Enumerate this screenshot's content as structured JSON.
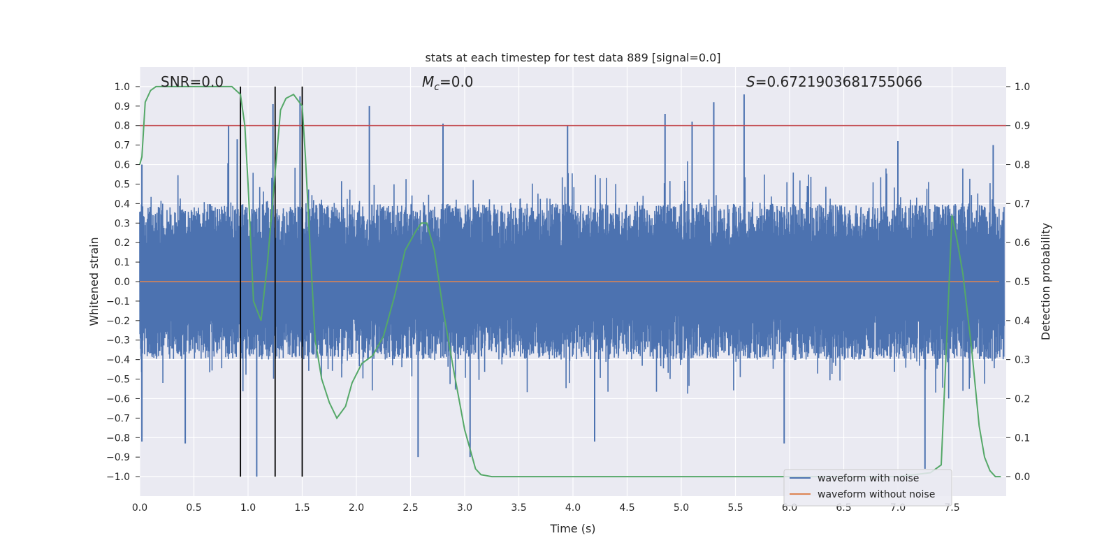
{
  "chart_data": {
    "type": "line",
    "title": "stats at each timestep for test data 889 [signal=0.0]",
    "xlabel": "Time (s)",
    "ylabel": "Whitened strain",
    "ylabel_right": "Detection probability",
    "xlim": [
      0,
      8
    ],
    "ylim": [
      -1.1,
      1.1
    ],
    "ylim_right": [
      -0.05,
      1.05
    ],
    "x_ticks": [
      "0.0",
      "0.5",
      "1.0",
      "1.5",
      "2.0",
      "2.5",
      "3.0",
      "3.5",
      "4.0",
      "4.5",
      "5.0",
      "5.5",
      "6.0",
      "6.5",
      "7.0",
      "7.5"
    ],
    "y_ticks_left": [
      "-1.0",
      "-0.9",
      "-0.8",
      "-0.7",
      "-0.6",
      "-0.5",
      "-0.4",
      "-0.3",
      "-0.2",
      "-0.1",
      "0.0",
      "0.1",
      "0.2",
      "0.3",
      "0.4",
      "0.5",
      "0.6",
      "0.7",
      "0.8",
      "0.9",
      "1.0"
    ],
    "y_ticks_right": [
      "0.0",
      "0.1",
      "0.2",
      "0.3",
      "0.4",
      "0.5",
      "0.6",
      "0.7",
      "0.8",
      "0.9",
      "1.0"
    ],
    "grid": true,
    "legend_position": "lower-right",
    "annotations": {
      "snr": "SNR=0.0",
      "mc_symbol": "M",
      "mc_sub": "c",
      "mc_value": "=0.0",
      "s_symbol": "S",
      "s_value": "=0.6721903681755066"
    },
    "threshold_right": 0.9,
    "vertical_lines_x": [
      0.93,
      1.25,
      1.5
    ],
    "series": [
      {
        "name": "waveform with noise",
        "color": "#4c72b0",
        "axis": "left",
        "noise_band": [
          -0.4,
          0.4
        ],
        "peaks": [
          {
            "x": 0.02,
            "y": 0.6
          },
          {
            "x": 0.02,
            "y": -0.82
          },
          {
            "x": 0.42,
            "y": -0.83
          },
          {
            "x": 0.82,
            "y": 0.8
          },
          {
            "x": 0.9,
            "y": 0.73
          },
          {
            "x": 1.08,
            "y": -1.0
          },
          {
            "x": 1.23,
            "y": 0.91
          },
          {
            "x": 1.48,
            "y": 0.95
          },
          {
            "x": 2.12,
            "y": 0.9
          },
          {
            "x": 2.57,
            "y": -0.9
          },
          {
            "x": 2.8,
            "y": 0.81
          },
          {
            "x": 3.05,
            "y": -0.9
          },
          {
            "x": 3.95,
            "y": 0.8
          },
          {
            "x": 4.2,
            "y": -0.82
          },
          {
            "x": 4.85,
            "y": 0.86
          },
          {
            "x": 5.1,
            "y": 0.82
          },
          {
            "x": 5.3,
            "y": 0.92
          },
          {
            "x": 5.58,
            "y": 0.96
          },
          {
            "x": 5.95,
            "y": -0.83
          },
          {
            "x": 7.0,
            "y": 0.72
          },
          {
            "x": 7.25,
            "y": -0.96
          },
          {
            "x": 7.88,
            "y": 0.7
          }
        ]
      },
      {
        "name": "waveform without noise",
        "color": "#dd8452",
        "axis": "left",
        "x": [
          0,
          8
        ],
        "y": [
          0,
          0
        ]
      },
      {
        "name": "",
        "color": "#55a868",
        "axis": "right",
        "x": [
          0.0,
          0.02,
          0.05,
          0.1,
          0.15,
          0.3,
          0.5,
          0.7,
          0.85,
          0.93,
          0.97,
          1.0,
          1.05,
          1.12,
          1.18,
          1.25,
          1.3,
          1.35,
          1.42,
          1.5,
          1.53,
          1.57,
          1.62,
          1.68,
          1.75,
          1.82,
          1.9,
          1.96,
          2.05,
          2.15,
          2.25,
          2.35,
          2.45,
          2.55,
          2.6,
          2.65,
          2.72,
          2.8,
          2.9,
          3.0,
          3.05,
          3.1,
          3.15,
          3.25,
          3.5,
          4.0,
          5.0,
          6.0,
          7.0,
          7.3,
          7.4,
          7.45,
          7.5,
          7.55,
          7.6,
          7.68,
          7.75,
          7.8,
          7.85,
          7.9,
          7.95
        ],
        "y": [
          0.8,
          0.82,
          0.96,
          0.99,
          1.0,
          1.0,
          1.0,
          1.0,
          1.0,
          0.98,
          0.9,
          0.75,
          0.45,
          0.4,
          0.55,
          0.78,
          0.94,
          0.97,
          0.98,
          0.95,
          0.82,
          0.6,
          0.35,
          0.25,
          0.19,
          0.15,
          0.18,
          0.24,
          0.29,
          0.31,
          0.36,
          0.46,
          0.58,
          0.63,
          0.65,
          0.65,
          0.58,
          0.43,
          0.27,
          0.12,
          0.07,
          0.02,
          0.005,
          0.0,
          0.0,
          0.0,
          0.0,
          0.0,
          0.0,
          0.01,
          0.03,
          0.35,
          0.67,
          0.6,
          0.52,
          0.33,
          0.13,
          0.05,
          0.015,
          0.0,
          0.0
        ]
      }
    ]
  }
}
